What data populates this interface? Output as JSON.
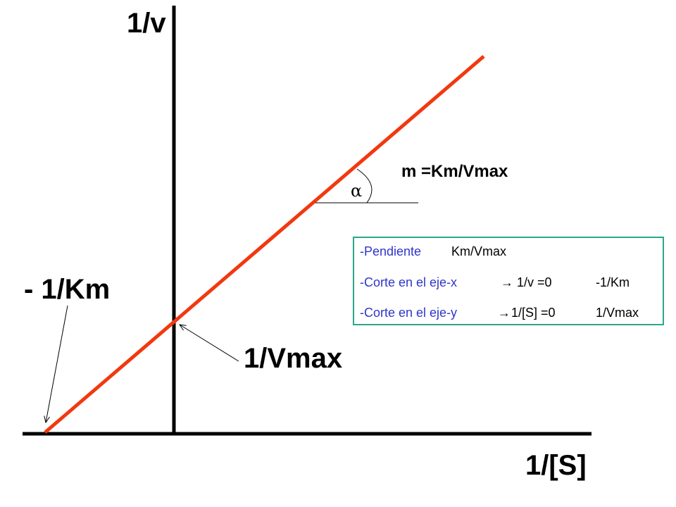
{
  "axes": {
    "y_label": "1/v",
    "x_label": "1/[S]"
  },
  "annotations": {
    "x_intercept_label": "- 1/Km",
    "y_intercept_label": "1/Vmax",
    "slope_label": "m =Km/Vmax",
    "angle_symbol": "α"
  },
  "legend": {
    "rows": [
      {
        "term": "-Pendiente",
        "arrow": "",
        "condition": "",
        "value": "Km/Vmax"
      },
      {
        "term": "-Corte en el eje-x",
        "arrow": "→",
        "condition": "1/v =0",
        "value": "-1/Km"
      },
      {
        "term": "-Corte en el eje-y",
        "arrow": "→",
        "condition": "1/[S] =0",
        "value": "1/Vmax"
      }
    ]
  },
  "colors": {
    "line": "#f2380f",
    "axes": "#000000",
    "legend_border": "#2aa889",
    "legend_text": "#2f35c8"
  }
}
